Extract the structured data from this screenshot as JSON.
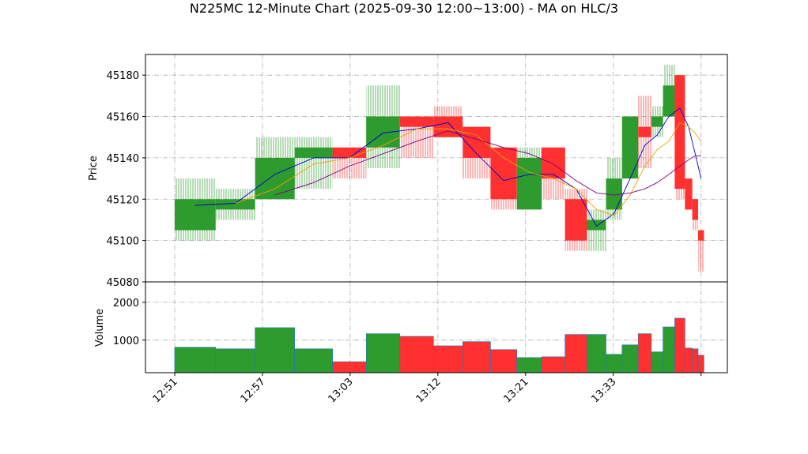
{
  "chart_data": {
    "type": "candlestick",
    "title": "N225MC 12-Minute Chart (2025-09-30 12:00~13:00) - MA on HLC/3",
    "ylabel": "Price",
    "volume_label": "Volume",
    "x": [
      0,
      2.8,
      5.5,
      8.2,
      10.8,
      13.1,
      15.4,
      17.7,
      19.7,
      21.6,
      23.4,
      25.1,
      26.7,
      28.2,
      29.5,
      30.6,
      31.7,
      32.6,
      33.4,
      34.2,
      34.9,
      35.4,
      35.8
    ],
    "open": [
      45105,
      45115,
      45120,
      45140,
      45145,
      45145,
      45160,
      45160,
      45155,
      45145,
      45115,
      45145,
      45120,
      45105,
      45115,
      45130,
      45155,
      45155,
      45160,
      45180,
      45130,
      45120,
      45105
    ],
    "high": [
      45130,
      45125,
      45150,
      45150,
      45145,
      45175,
      45160,
      45165,
      45155,
      45145,
      45145,
      45145,
      45125,
      45115,
      45140,
      45160,
      45170,
      45165,
      45185,
      45180,
      45130,
      45120,
      45105
    ],
    "low": [
      45100,
      45110,
      45120,
      45125,
      45130,
      45135,
      45140,
      45150,
      45130,
      45115,
      45115,
      45120,
      45095,
      45095,
      45110,
      45130,
      45135,
      45150,
      45160,
      45120,
      45115,
      45105,
      45085
    ],
    "close": [
      45120,
      45120,
      45140,
      45145,
      45140,
      45160,
      45155,
      45150,
      45140,
      45120,
      45140,
      45130,
      45100,
      45110,
      45130,
      45160,
      45150,
      45160,
      45175,
      45125,
      45115,
      45110,
      45100
    ],
    "volume": [
      812,
      770,
      1330,
      770,
      430,
      1170,
      1100,
      850,
      960,
      750,
      540,
      560,
      1150,
      1150,
      625,
      875,
      1170,
      690,
      1350,
      1580,
      790,
      770,
      600
    ],
    "ma": [
      {
        "color": "#0000cc",
        "values": [
          45117,
          45118,
          45132,
          45140,
          45140,
          45152,
          45154,
          45157,
          45142,
          45129,
          45132,
          45132,
          45125,
          45107,
          45113,
          45130,
          45146,
          45151,
          45160,
          45164,
          45155,
          45142,
          45130
        ]
      },
      {
        "color": "#f0a000",
        "values": [
          null,
          45118,
          45125,
          45137,
          45140,
          45146,
          45154,
          45154,
          45151,
          45140,
          45133,
          45130,
          45125,
          45115,
          45112,
          45122,
          45136,
          45144,
          45148,
          45157,
          45155,
          45152,
          45148
        ]
      },
      {
        "color": "#800080",
        "values": [
          null,
          null,
          45122,
          45128,
          45136,
          45142,
          45148,
          45153,
          45149,
          45145,
          45142,
          45137,
          45129,
          45123,
          45122,
          45123,
          45125,
          45128,
          45132,
          45136,
          45139,
          45141,
          45141
        ]
      }
    ],
    "up_color": "#2e9b2e",
    "down_color": "#ff3030",
    "xlim": [
      -2,
      37.8
    ],
    "xticks": [
      {
        "value": 0,
        "label": "12:51"
      },
      {
        "value": 6,
        "label": "12:57"
      },
      {
        "value": 12,
        "label": "13:03"
      },
      {
        "value": 18,
        "label": "13:12"
      },
      {
        "value": 24,
        "label": "13:21"
      },
      {
        "value": 30,
        "label": "13:33"
      },
      {
        "value": 36,
        "label": null
      }
    ],
    "ylim": [
      45080,
      45190
    ],
    "yticks": [
      45080,
      45100,
      45120,
      45140,
      45160,
      45180
    ],
    "volume_ylim": [
      140,
      2540
    ],
    "volume_yticks": [
      1000,
      2000
    ],
    "grid": true
  }
}
